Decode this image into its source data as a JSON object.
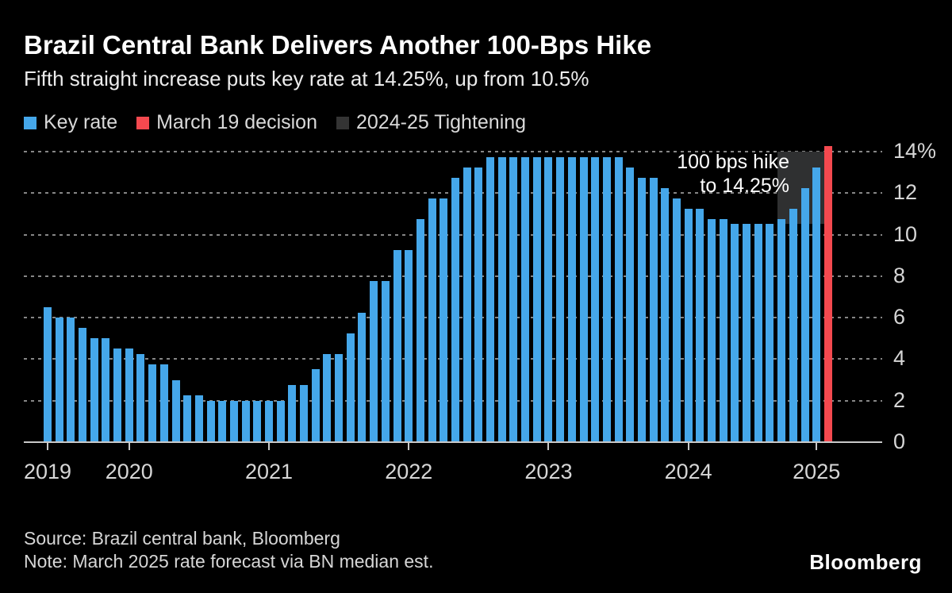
{
  "header": {
    "title": "Brazil Central Bank Delivers Another 100-Bps Hike",
    "subtitle": "Fifth straight increase puts key rate at 14.25%, up from 10.5%"
  },
  "legend": {
    "items": [
      {
        "label": "Key rate",
        "color": "#45a7ea"
      },
      {
        "label": "March 19 decision",
        "color": "#f4494f"
      },
      {
        "label": "2024-25 Tightening",
        "color": "#343434"
      }
    ]
  },
  "chart_data": {
    "type": "bar",
    "title": "Brazil Central Bank Delivers Another 100-Bps Hike",
    "ylabel": "Key rate (%)",
    "ylim": [
      0,
      14.6
    ],
    "grid": "dotted horizontal, labels on right",
    "unit": "%",
    "start_period": "mid-2019 (monthly bars)",
    "key_rate_color": "#45a7ea",
    "decision_color": "#f4494f",
    "highlight_color": "#2f3031",
    "key_rate_values": [
      6.5,
      6,
      6,
      5.5,
      5,
      5,
      4.5,
      4.5,
      4.25,
      3.75,
      3.75,
      3,
      2.25,
      2.25,
      2,
      2,
      2,
      2,
      2,
      2,
      2,
      2.75,
      2.75,
      3.5,
      4.25,
      4.25,
      5.25,
      6.25,
      7.75,
      7.75,
      9.25,
      9.25,
      10.75,
      11.75,
      11.75,
      12.75,
      13.25,
      13.25,
      13.75,
      13.75,
      13.75,
      13.75,
      13.75,
      13.75,
      13.75,
      13.75,
      13.75,
      13.75,
      13.75,
      13.75,
      13.25,
      12.75,
      12.75,
      12.25,
      11.75,
      11.25,
      11.25,
      10.75,
      10.75,
      10.5,
      10.5,
      10.5,
      10.5,
      10.75,
      11.25,
      12.25,
      13.25
    ],
    "march_19_decision": {
      "value": 14.25,
      "bar_index": 67,
      "label": "March 19 decision"
    },
    "tightening_highlight": {
      "label": "2024-25 Tightening",
      "from_bar_index": 63,
      "to_bar_index": 67,
      "from_value": 10.5,
      "to_value": 14.0
    },
    "y_ticks": [
      {
        "value": 14,
        "label": "14%"
      },
      {
        "value": 12,
        "label": "12"
      },
      {
        "value": 10,
        "label": "10"
      },
      {
        "value": 8,
        "label": "8"
      },
      {
        "value": 6,
        "label": "6"
      },
      {
        "value": 4,
        "label": "4"
      },
      {
        "value": 2,
        "label": "2"
      },
      {
        "value": 0,
        "label": "0"
      }
    ],
    "x_ticks": [
      {
        "label": "2019",
        "bar_index": 0
      },
      {
        "label": "2020",
        "bar_index": 7
      },
      {
        "label": "2021",
        "bar_index": 19
      },
      {
        "label": "2022",
        "bar_index": 31
      },
      {
        "label": "2023",
        "bar_index": 43
      },
      {
        "label": "2024",
        "bar_index": 55
      },
      {
        "label": "2025",
        "bar_index": 66
      }
    ],
    "annotation": {
      "line1": "100 bps hike",
      "line2": "to 14.25%"
    }
  },
  "footer": {
    "source": "Source: Brazil central bank, Bloomberg",
    "note": "Note: March 2025 rate forecast via BN median est.",
    "logo": "Bloomberg"
  }
}
